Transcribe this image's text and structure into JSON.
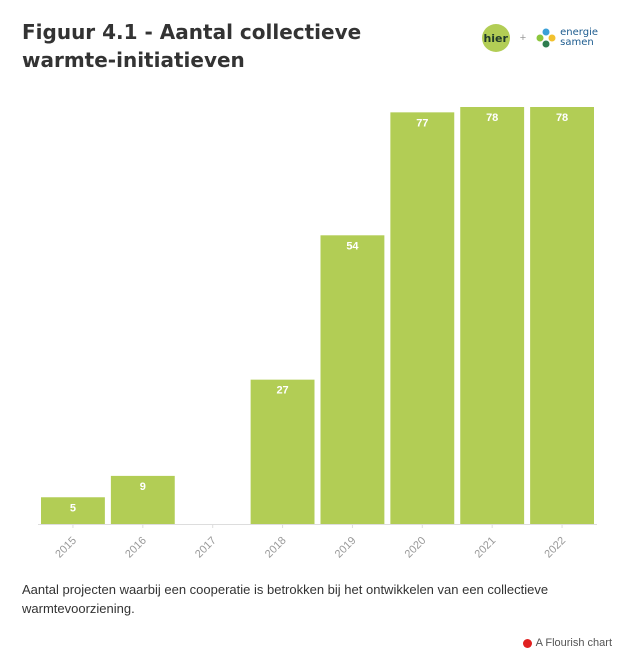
{
  "header": {
    "title": "Figuur 4.1 - Aantal collectieve warmte-initiatieven",
    "logos": {
      "hier": "hier",
      "separator": "+",
      "energie_line1": "energie",
      "energie_line2": "samen"
    }
  },
  "chart_data": {
    "type": "bar",
    "title": "Figuur 4.1 - Aantal collectieve warmte-initiatieven",
    "categories": [
      "2015",
      "2016",
      "2017",
      "2018",
      "2019",
      "2020",
      "2021",
      "2022"
    ],
    "values": [
      5,
      9,
      null,
      27,
      54,
      77,
      78,
      78
    ],
    "value_labels": [
      "5",
      "9",
      "",
      "27",
      "54",
      "77",
      "78",
      "78"
    ],
    "xlabel": "",
    "ylabel": "",
    "ylim": [
      0,
      78
    ],
    "grid": false,
    "legend": "none",
    "colors": {
      "bar": "#b2cd55",
      "label": "#ffffff",
      "tick": "#999999"
    }
  },
  "caption": "Aantal projecten waarbij een cooperatie is betrokken bij het ontwikkelen van een collectieve warmtevoorziening.",
  "credit": "A Flourish chart"
}
